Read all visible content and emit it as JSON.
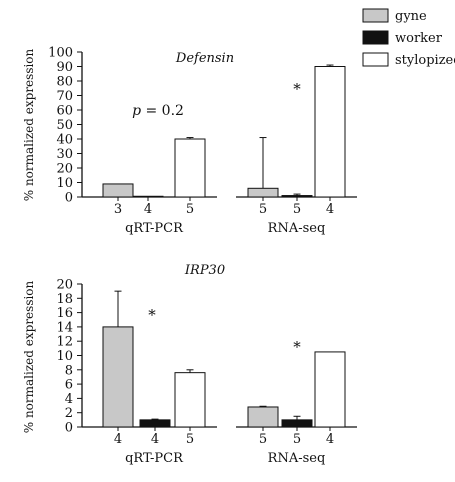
{
  "legend": {
    "placement": "top-right",
    "items": [
      {
        "label": "gyne",
        "color": "#c8c8c8"
      },
      {
        "label": "worker",
        "color": "#111111"
      },
      {
        "label": "stylopized",
        "color": "#ffffff"
      }
    ]
  },
  "colors": {
    "gyne": "#c8c8c8",
    "worker": "#111111",
    "stylopized": "#ffffff",
    "stroke": "#111111"
  },
  "chart_data": [
    {
      "type": "bar",
      "title": "Defensin",
      "ylabel": "% normalized expression",
      "ylim": [
        0,
        100
      ],
      "yticks": [
        0,
        10,
        20,
        30,
        40,
        50,
        60,
        70,
        80,
        90,
        100
      ],
      "groups": [
        {
          "label": "qRT-PCR",
          "bars": [
            {
              "series": "gyne",
              "value": 9,
              "error": 0,
              "n": "3"
            },
            {
              "series": "worker",
              "value": 0.5,
              "error": 0,
              "n": "4"
            },
            {
              "series": "stylopized",
              "value": 40,
              "error": 1,
              "n": "5"
            }
          ],
          "annotation": "p = 0.2"
        },
        {
          "label": "RNA-seq",
          "bars": [
            {
              "series": "gyne",
              "value": 6,
              "error": 35,
              "n": "5"
            },
            {
              "series": "worker",
              "value": 1,
              "error": 1,
              "n": "5"
            },
            {
              "series": "stylopized",
              "value": 90,
              "error": 1,
              "n": "4"
            }
          ],
          "annotation": "*"
        }
      ]
    },
    {
      "type": "bar",
      "title": "IRP30",
      "ylabel": "% normalized expression",
      "ylim": [
        0,
        20
      ],
      "yticks": [
        0,
        2,
        4,
        6,
        8,
        10,
        12,
        14,
        16,
        18,
        20
      ],
      "groups": [
        {
          "label": "qRT-PCR",
          "bars": [
            {
              "series": "gyne",
              "value": 14,
              "error": 5,
              "n": "4"
            },
            {
              "series": "worker",
              "value": 1,
              "error": 0.1,
              "n": "4"
            },
            {
              "series": "stylopized",
              "value": 7.6,
              "error": 0.4,
              "n": "5"
            }
          ],
          "annotation": "*"
        },
        {
          "label": "RNA-seq",
          "bars": [
            {
              "series": "gyne",
              "value": 2.8,
              "error": 0.1,
              "n": "5"
            },
            {
              "series": "worker",
              "value": 1,
              "error": 0.5,
              "n": "5"
            },
            {
              "series": "stylopized",
              "value": 10.5,
              "error": 0,
              "n": "4"
            }
          ],
          "annotation": "*"
        }
      ]
    }
  ]
}
